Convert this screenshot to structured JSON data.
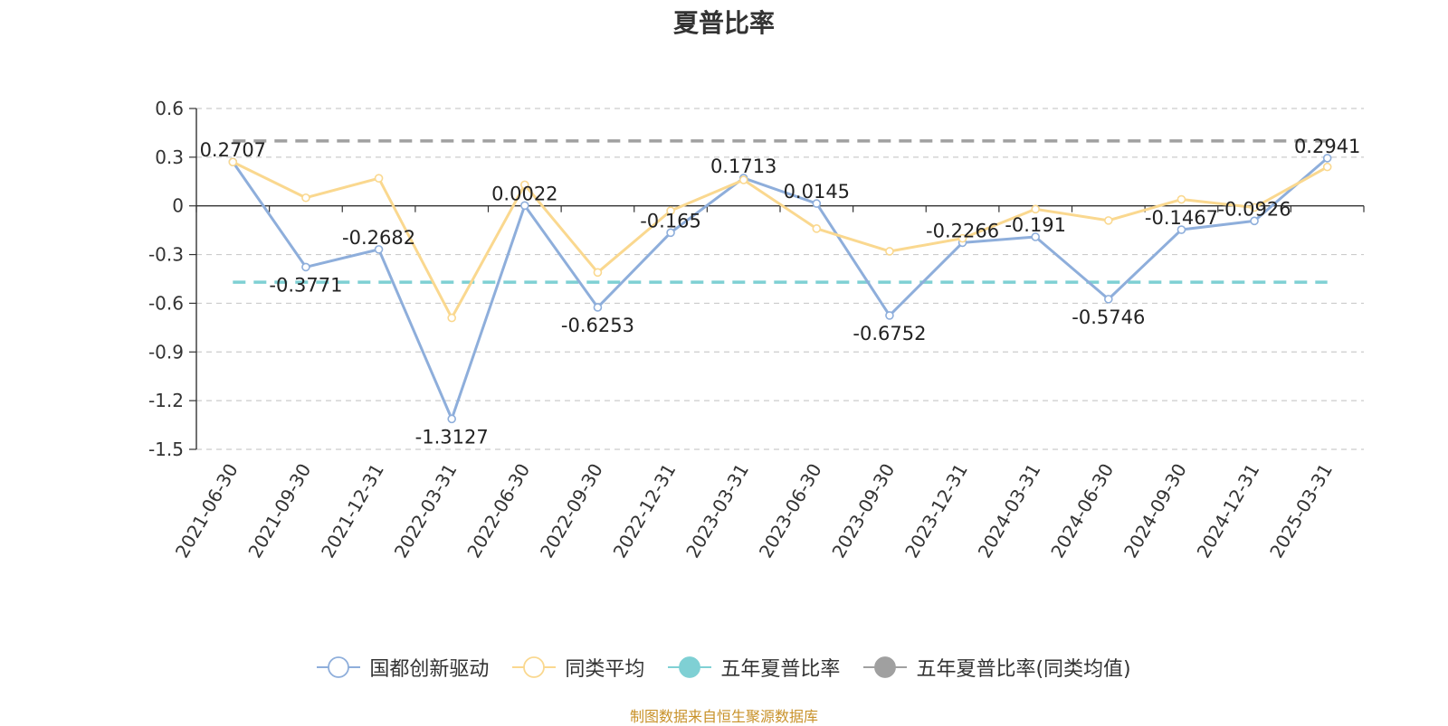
{
  "chart_data": {
    "type": "line",
    "title": "夏普比率",
    "categories": [
      "2021-06-30",
      "2021-09-30",
      "2021-12-31",
      "2022-03-31",
      "2022-06-30",
      "2022-09-30",
      "2022-12-31",
      "2023-03-31",
      "2023-06-30",
      "2023-09-30",
      "2023-12-31",
      "2024-03-31",
      "2024-06-30",
      "2024-09-30",
      "2024-12-31",
      "2025-03-31"
    ],
    "ylim": [
      -1.5,
      0.6
    ],
    "yticks": [
      0.6,
      0.3,
      0,
      -0.3,
      -0.6,
      -0.9,
      -1.2,
      -1.5
    ],
    "ytick_labels": [
      "0.6",
      "0.3",
      "0",
      "-0.3",
      "-0.6",
      "-0.9",
      "-1.2",
      "-1.5"
    ],
    "grid": true,
    "legend_position": "bottom-center",
    "series": [
      {
        "name": "国都创新驱动",
        "color": "#8eaedb",
        "values": [
          0.2707,
          -0.3771,
          -0.2682,
          -1.3127,
          0.0022,
          -0.6253,
          -0.165,
          0.1713,
          0.0145,
          -0.6752,
          -0.2266,
          -0.191,
          -0.5746,
          -0.1467,
          -0.0926,
          0.2941
        ],
        "labels": [
          "0.2707",
          "-0.3771",
          "-0.2682",
          "-1.3127",
          "0.0022",
          "-0.6253",
          "-0.165",
          "0.1713",
          "0.0145",
          "-0.6752",
          "-0.2266",
          "-0.191",
          "-0.5746",
          "-0.1467",
          "-0.0926",
          "0.2941"
        ]
      },
      {
        "name": "同类平均",
        "color": "#fad88f",
        "values": [
          0.27,
          0.05,
          0.17,
          -0.69,
          0.13,
          -0.41,
          -0.03,
          0.16,
          -0.14,
          -0.28,
          -0.2,
          -0.02,
          -0.09,
          0.04,
          -0.01,
          0.24
        ]
      },
      {
        "name": "五年夏普比率",
        "color": "#7fd0d4",
        "values": [
          -0.47,
          -0.47,
          -0.47,
          -0.47,
          -0.47,
          -0.47,
          -0.47,
          -0.47,
          -0.47,
          -0.47,
          -0.47,
          -0.47,
          -0.47,
          -0.47,
          -0.47,
          -0.47
        ]
      },
      {
        "name": "五年夏普比率(同类均值)",
        "color": "#a0a0a0",
        "values": [
          0.4,
          0.4,
          0.4,
          0.4,
          0.4,
          0.4,
          0.4,
          0.4,
          0.4,
          0.4,
          0.4,
          0.4,
          0.4,
          0.4,
          0.4,
          0.4
        ]
      }
    ]
  },
  "source_note": "制图数据来自恒生聚源数据库"
}
